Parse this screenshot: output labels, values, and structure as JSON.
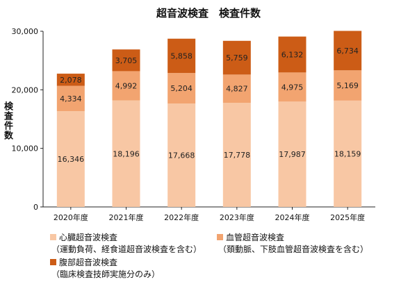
{
  "chart_data": {
    "type": "bar",
    "stacked": true,
    "title": "超音波検査　検査件数",
    "ylabel": "検査件数",
    "xlabel": "",
    "ylim": [
      0,
      30000
    ],
    "yticks": [
      "0",
      "10,000",
      "20,000",
      "30,000"
    ],
    "ytick_values": [
      0,
      10000,
      20000,
      30000
    ],
    "grid": false,
    "legend_placement": "bottom",
    "categories": [
      "2020年度",
      "2021年度",
      "2022年度",
      "2023年度",
      "2024年度",
      "2025年度"
    ],
    "series": [
      {
        "name": "心臓超音波検査",
        "note": "（運動負荷、経食道超音波検査を含む）",
        "color": "#f8c7a4",
        "values": [
          16346,
          18196,
          17668,
          17778,
          17987,
          18159
        ],
        "labels": [
          "16,346",
          "18,196",
          "17,668",
          "17,778",
          "17,987",
          "18,159"
        ]
      },
      {
        "name": "血管超音波検査",
        "note": "（頚動脈、下肢血管超音波検査を含む）",
        "color": "#f2a470",
        "values": [
          4334,
          4992,
          5204,
          4827,
          4975,
          5169
        ],
        "labels": [
          "4,334",
          "4,992",
          "5,204",
          "4,827",
          "4,975",
          "5,169"
        ]
      },
      {
        "name": "腹部超音波検査",
        "note": "（臨床検査技師実施分のみ）",
        "color": "#cc5c16",
        "values": [
          2078,
          3705,
          5858,
          5759,
          6132,
          6734
        ],
        "labels": [
          "2,078",
          "3,705",
          "5,858",
          "5,759",
          "6,132",
          "6,734"
        ]
      }
    ]
  }
}
